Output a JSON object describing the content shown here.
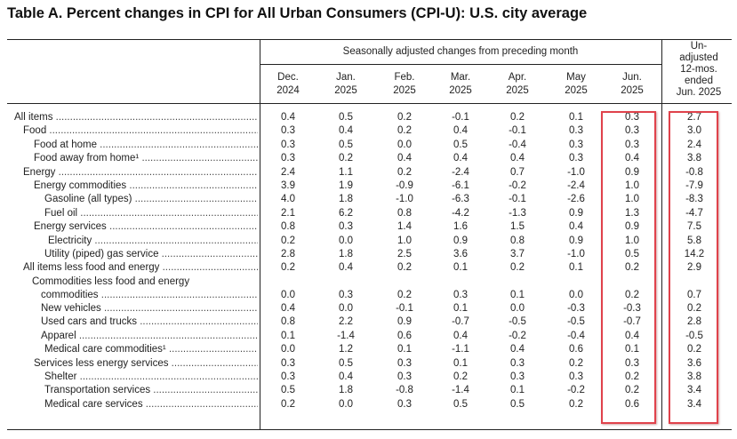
{
  "title": "Table A. Percent changes in CPI for All Urban Consumers (CPI-U): U.S. city average",
  "span_header": "Seasonally adjusted changes from preceding month",
  "columns": [
    "Dec.\n2024",
    "Jan.\n2025",
    "Feb.\n2025",
    "Mar.\n2025",
    "Apr.\n2025",
    "May\n2025",
    "Jun.\n2025"
  ],
  "last_column": [
    "Un-",
    "adjusted",
    "12-mos.",
    "ended",
    "Jun. 2025"
  ],
  "rows": [
    {
      "label": "All items",
      "values": [
        "0.4",
        "0.5",
        "0.2",
        "-0.1",
        "0.2",
        "0.1",
        "0.3",
        "2.7"
      ]
    },
    {
      "label": "Food",
      "values": [
        "0.3",
        "0.4",
        "0.2",
        "0.4",
        "-0.1",
        "0.3",
        "0.3",
        "3.0"
      ]
    },
    {
      "label": "Food at home",
      "values": [
        "0.3",
        "0.5",
        "0.0",
        "0.5",
        "-0.4",
        "0.3",
        "0.3",
        "2.4"
      ]
    },
    {
      "label": "Food away from home¹",
      "values": [
        "0.3",
        "0.2",
        "0.4",
        "0.4",
        "0.4",
        "0.3",
        "0.4",
        "3.8"
      ]
    },
    {
      "label": "Energy",
      "values": [
        "2.4",
        "1.1",
        "0.2",
        "-2.4",
        "0.7",
        "-1.0",
        "0.9",
        "-0.8"
      ]
    },
    {
      "label": "Energy commodities",
      "values": [
        "3.9",
        "1.9",
        "-0.9",
        "-6.1",
        "-0.2",
        "-2.4",
        "1.0",
        "-7.9"
      ]
    },
    {
      "label": "Gasoline (all types)",
      "values": [
        "4.0",
        "1.8",
        "-1.0",
        "-6.3",
        "-0.1",
        "-2.6",
        "1.0",
        "-8.3"
      ]
    },
    {
      "label": "Fuel oil",
      "values": [
        "2.1",
        "6.2",
        "0.8",
        "-4.2",
        "-1.3",
        "0.9",
        "1.3",
        "-4.7"
      ]
    },
    {
      "label": "Energy services",
      "values": [
        "0.8",
        "0.3",
        "1.4",
        "1.6",
        "1.5",
        "0.4",
        "0.9",
        "7.5"
      ]
    },
    {
      "label": "Electricity",
      "values": [
        "0.2",
        "0.0",
        "1.0",
        "0.9",
        "0.8",
        "0.9",
        "1.0",
        "5.8"
      ]
    },
    {
      "label": "Utility (piped) gas service",
      "values": [
        "2.8",
        "1.8",
        "2.5",
        "3.6",
        "3.7",
        "-1.0",
        "0.5",
        "14.2"
      ]
    },
    {
      "label": "All items less food and energy",
      "values": [
        "0.2",
        "0.4",
        "0.2",
        "0.1",
        "0.2",
        "0.1",
        "0.2",
        "2.9"
      ]
    },
    {
      "label": "Commodities less food and energy",
      "label2": "commodities",
      "values": [
        "0.0",
        "0.3",
        "0.2",
        "0.3",
        "0.1",
        "0.0",
        "0.2",
        "0.7"
      ]
    },
    {
      "label": "New vehicles",
      "values": [
        "0.4",
        "0.0",
        "-0.1",
        "0.1",
        "0.0",
        "-0.3",
        "-0.3",
        "0.2"
      ]
    },
    {
      "label": "Used cars and trucks",
      "values": [
        "0.8",
        "2.2",
        "0.9",
        "-0.7",
        "-0.5",
        "-0.5",
        "-0.7",
        "2.8"
      ]
    },
    {
      "label": "Apparel",
      "values": [
        "0.1",
        "-1.4",
        "0.6",
        "0.4",
        "-0.2",
        "-0.4",
        "0.4",
        "-0.5"
      ]
    },
    {
      "label": "Medical   care   commodities¹",
      "values": [
        "0.0",
        "1.2",
        "0.1",
        "-1.1",
        "0.4",
        "0.6",
        "0.1",
        "0.2"
      ]
    },
    {
      "label": "Services less energy services",
      "values": [
        "0.3",
        "0.5",
        "0.3",
        "0.1",
        "0.3",
        "0.2",
        "0.3",
        "3.6"
      ]
    },
    {
      "label": "Shelter",
      "values": [
        "0.3",
        "0.4",
        "0.3",
        "0.2",
        "0.3",
        "0.3",
        "0.2",
        "3.8"
      ]
    },
    {
      "label": "Transportation services",
      "values": [
        "0.5",
        "1.8",
        "-0.8",
        "-1.4",
        "0.1",
        "-0.2",
        "0.2",
        "3.4"
      ]
    },
    {
      "label": "Medical care services",
      "values": [
        "0.2",
        "0.0",
        "0.3",
        "0.5",
        "0.5",
        "0.2",
        "0.6",
        "3.4"
      ]
    }
  ],
  "highlight_color": "#e0424b"
}
